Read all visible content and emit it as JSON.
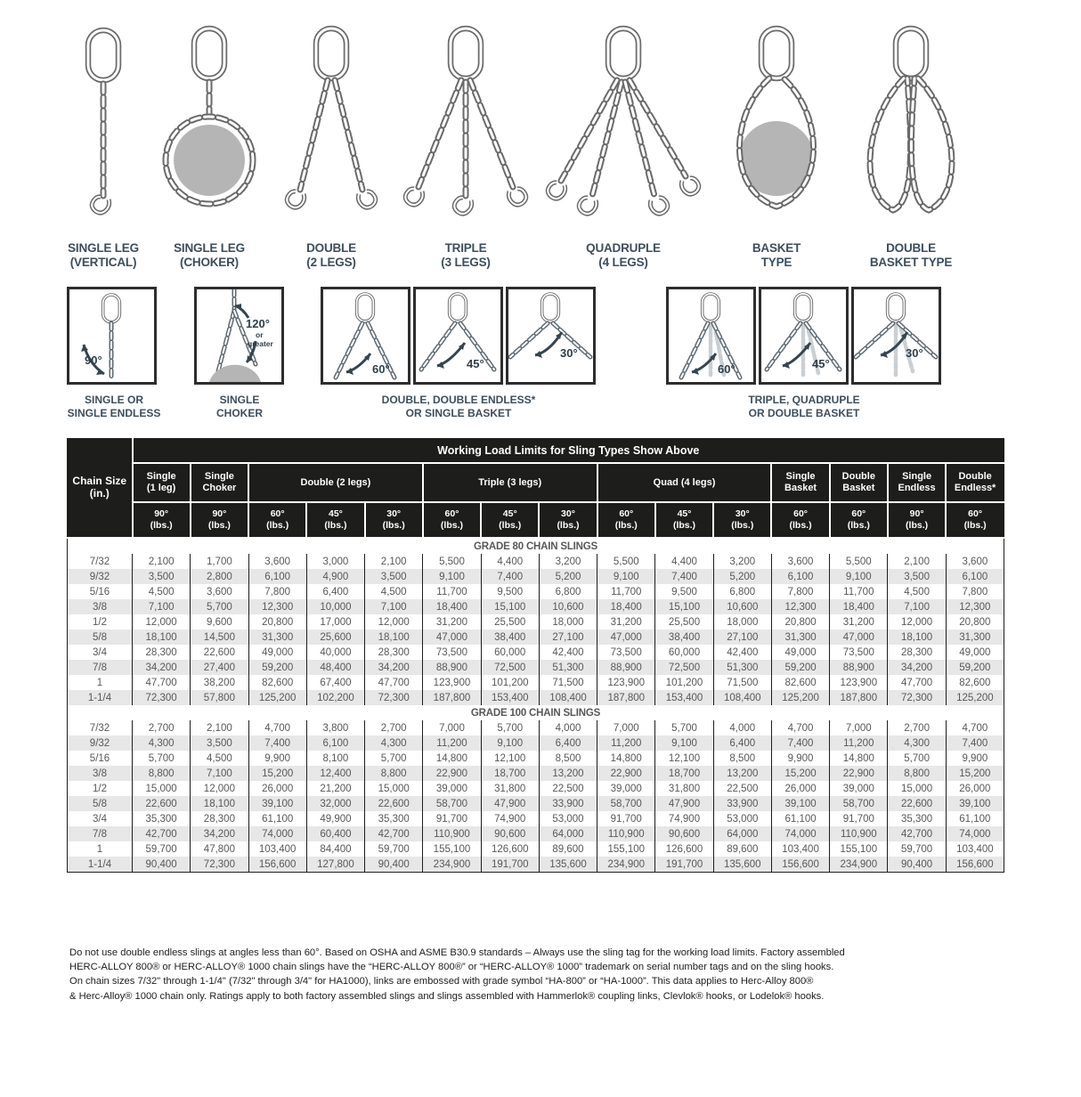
{
  "colors": {
    "accent_orange": "#F0722B",
    "header_black": "#1D1D1B",
    "row_alt": "#E7E7E7",
    "value_text": "#57585A",
    "label_slate": "#3D4E5B",
    "load_gray": "#B5B5B5"
  },
  "figures": [
    {
      "label": "SINGLE LEG\n(VERTICAL)"
    },
    {
      "label": "SINGLE LEG\n(CHOKER)"
    },
    {
      "label": "DOUBLE\n(2 LEGS)"
    },
    {
      "label": "TRIPLE\n(3 LEGS)"
    },
    {
      "label": "QUADRUPLE\n(4 LEGS)"
    },
    {
      "label": "BASKET\nTYPE"
    },
    {
      "label": "DOUBLE\nBASKET TYPE"
    }
  ],
  "angle_section": {
    "boxes": [
      {
        "angle": "90°"
      },
      {
        "angle": "120°",
        "note_lines": [
          "or",
          "greater"
        ]
      },
      {
        "angle": "60°"
      },
      {
        "angle": "45°"
      },
      {
        "angle": "30°"
      },
      {
        "angle": "60°"
      },
      {
        "angle": "45°"
      },
      {
        "angle": "30°"
      }
    ],
    "captions": [
      {
        "text": "SINGLE OR\nSINGLE ENDLESS"
      },
      {
        "text": "SINGLE\nCHOKER"
      },
      {
        "text": "DOUBLE, DOUBLE ENDLESS*\nOR SINGLE BASKET"
      },
      {
        "text": "TRIPLE, QUADRUPLE\nOR DOUBLE BASKET"
      }
    ]
  },
  "table": {
    "banner": "Working Load Limits for Sling Types Show Above",
    "chain_size_label": "Chain Size\n(in.)",
    "unit_label": "(lbs.)",
    "groups": [
      {
        "label": "Single\n(1 leg)",
        "angles": [
          "90°"
        ]
      },
      {
        "label": "Single\nChoker",
        "angles": [
          "90°"
        ]
      },
      {
        "label": "Double (2 legs)",
        "angles": [
          "60°",
          "45°",
          "30°"
        ]
      },
      {
        "label": "Triple (3 legs)",
        "angles": [
          "60°",
          "45°",
          "30°"
        ]
      },
      {
        "label": "Quad (4 legs)",
        "angles": [
          "60°",
          "45°",
          "30°"
        ]
      },
      {
        "label": "Single\nBasket",
        "angles": [
          "60°"
        ]
      },
      {
        "label": "Double\nBasket",
        "angles": [
          "60°"
        ]
      },
      {
        "label": "Single\nEndless",
        "angles": [
          "90°"
        ]
      },
      {
        "label": "Double\nEndless*",
        "angles": [
          "60°"
        ]
      }
    ],
    "sections": [
      {
        "title": "GRADE 80 CHAIN SLINGS",
        "rows": [
          {
            "size": "7/32",
            "values": [
              "2,100",
              "1,700",
              "3,600",
              "3,000",
              "2,100",
              "5,500",
              "4,400",
              "3,200",
              "5,500",
              "4,400",
              "3,200",
              "3,600",
              "5,500",
              "2,100",
              "3,600"
            ]
          },
          {
            "size": "9/32",
            "values": [
              "3,500",
              "2,800",
              "6,100",
              "4,900",
              "3,500",
              "9,100",
              "7,400",
              "5,200",
              "9,100",
              "7,400",
              "5,200",
              "6,100",
              "9,100",
              "3,500",
              "6,100"
            ]
          },
          {
            "size": "5/16",
            "values": [
              "4,500",
              "3,600",
              "7,800",
              "6,400",
              "4,500",
              "11,700",
              "9,500",
              "6,800",
              "11,700",
              "9,500",
              "6,800",
              "7,800",
              "11,700",
              "4,500",
              "7,800"
            ]
          },
          {
            "size": "3/8",
            "values": [
              "7,100",
              "5,700",
              "12,300",
              "10,000",
              "7,100",
              "18,400",
              "15,100",
              "10,600",
              "18,400",
              "15,100",
              "10,600",
              "12,300",
              "18,400",
              "7,100",
              "12,300"
            ]
          },
          {
            "size": "1/2",
            "values": [
              "12,000",
              "9,600",
              "20,800",
              "17,000",
              "12,000",
              "31,200",
              "25,500",
              "18,000",
              "31,200",
              "25,500",
              "18,000",
              "20,800",
              "31,200",
              "12,000",
              "20,800"
            ]
          },
          {
            "size": "5/8",
            "values": [
              "18,100",
              "14,500",
              "31,300",
              "25,600",
              "18,100",
              "47,000",
              "38,400",
              "27,100",
              "47,000",
              "38,400",
              "27,100",
              "31,300",
              "47,000",
              "18,100",
              "31,300"
            ]
          },
          {
            "size": "3/4",
            "values": [
              "28,300",
              "22,600",
              "49,000",
              "40,000",
              "28,300",
              "73,500",
              "60,000",
              "42,400",
              "73,500",
              "60,000",
              "42,400",
              "49,000",
              "73,500",
              "28,300",
              "49,000"
            ]
          },
          {
            "size": "7/8",
            "values": [
              "34,200",
              "27,400",
              "59,200",
              "48,400",
              "34,200",
              "88,900",
              "72,500",
              "51,300",
              "88,900",
              "72,500",
              "51,300",
              "59,200",
              "88,900",
              "34,200",
              "59,200"
            ]
          },
          {
            "size": "1",
            "values": [
              "47,700",
              "38,200",
              "82,600",
              "67,400",
              "47,700",
              "123,900",
              "101,200",
              "71,500",
              "123,900",
              "101,200",
              "71,500",
              "82,600",
              "123,900",
              "47,700",
              "82,600"
            ]
          },
          {
            "size": "1-1/4",
            "values": [
              "72,300",
              "57,800",
              "125,200",
              "102,200",
              "72,300",
              "187,800",
              "153,400",
              "108,400",
              "187,800",
              "153,400",
              "108,400",
              "125,200",
              "187,800",
              "72,300",
              "125,200"
            ]
          }
        ]
      },
      {
        "title": "GRADE 100 CHAIN SLINGS",
        "rows": [
          {
            "size": "7/32",
            "values": [
              "2,700",
              "2,100",
              "4,700",
              "3,800",
              "2,700",
              "7,000",
              "5,700",
              "4,000",
              "7,000",
              "5,700",
              "4,000",
              "4,700",
              "7,000",
              "2,700",
              "4,700"
            ]
          },
          {
            "size": "9/32",
            "values": [
              "4,300",
              "3,500",
              "7,400",
              "6,100",
              "4,300",
              "11,200",
              "9,100",
              "6,400",
              "11,200",
              "9,100",
              "6,400",
              "7,400",
              "11,200",
              "4,300",
              "7,400"
            ]
          },
          {
            "size": "5/16",
            "values": [
              "5,700",
              "4,500",
              "9,900",
              "8,100",
              "5,700",
              "14,800",
              "12,100",
              "8,500",
              "14,800",
              "12,100",
              "8,500",
              "9,900",
              "14,800",
              "5,700",
              "9,900"
            ]
          },
          {
            "size": "3/8",
            "values": [
              "8,800",
              "7,100",
              "15,200",
              "12,400",
              "8,800",
              "22,900",
              "18,700",
              "13,200",
              "22,900",
              "18,700",
              "13,200",
              "15,200",
              "22,900",
              "8,800",
              "15,200"
            ]
          },
          {
            "size": "1/2",
            "values": [
              "15,000",
              "12,000",
              "26,000",
              "21,200",
              "15,000",
              "39,000",
              "31,800",
              "22,500",
              "39,000",
              "31,800",
              "22,500",
              "26,000",
              "39,000",
              "15,000",
              "26,000"
            ]
          },
          {
            "size": "5/8",
            "values": [
              "22,600",
              "18,100",
              "39,100",
              "32,000",
              "22,600",
              "58,700",
              "47,900",
              "33,900",
              "58,700",
              "47,900",
              "33,900",
              "39,100",
              "58,700",
              "22,600",
              "39,100"
            ]
          },
          {
            "size": "3/4",
            "values": [
              "35,300",
              "28,300",
              "61,100",
              "49,900",
              "35,300",
              "91,700",
              "74,900",
              "53,000",
              "91,700",
              "74,900",
              "53,000",
              "61,100",
              "91,700",
              "35,300",
              "61,100"
            ]
          },
          {
            "size": "7/8",
            "values": [
              "42,700",
              "34,200",
              "74,000",
              "60,400",
              "42,700",
              "110,900",
              "90,600",
              "64,000",
              "110,900",
              "90,600",
              "64,000",
              "74,000",
              "110,900",
              "42,700",
              "74,000"
            ]
          },
          {
            "size": "1",
            "values": [
              "59,700",
              "47,800",
              "103,400",
              "84,400",
              "59,700",
              "155,100",
              "126,600",
              "89,600",
              "155,100",
              "126,600",
              "89,600",
              "103,400",
              "155,100",
              "59,700",
              "103,400"
            ]
          },
          {
            "size": "1-1/4",
            "values": [
              "90,400",
              "72,300",
              "156,600",
              "127,800",
              "90,400",
              "234,900",
              "191,700",
              "135,600",
              "234,900",
              "191,700",
              "135,600",
              "156,600",
              "234,900",
              "90,400",
              "156,600"
            ]
          }
        ]
      }
    ]
  },
  "footnote": {
    "lines": [
      "Do not use double endless slings at angles less than 60°. Based on OSHA and ASME B30.9 standards – Always use the sling tag for the working load limits. Factory assembled",
      "HERC-ALLOY 800® or HERC-ALLOY® 1000 chain slings have the “HERC-ALLOY 800®” or “HERC-ALLOY® 1000” trademark on serial number tags and on the sling hooks.",
      "On chain sizes 7/32\" through 1-1/4\" (7/32\" through 3/4\" for HA1000), links are embossed with grade symbol “HA-800” or “HA-1000”. This data applies to Herc-Alloy 800®",
      "& Herc-Alloy® 1000 chain only. Ratings apply to both factory assembled slings and slings assembled with Hammerlok® coupling links, Clevlok® hooks, or Lodelok® hooks."
    ]
  }
}
